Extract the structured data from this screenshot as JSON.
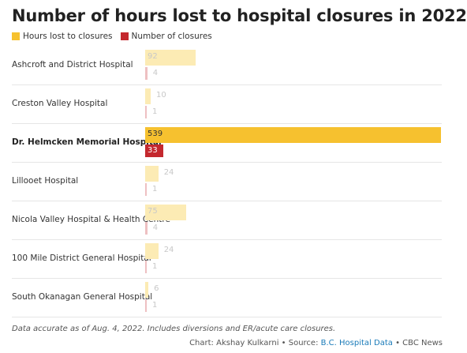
{
  "chart_data": {
    "type": "bar",
    "orientation": "horizontal",
    "title": "Number of hours lost to hospital closures in 2022",
    "categories": [
      "Ashcroft and District Hospital",
      "Creston Valley Hospital",
      "Dr. Helmcken Memorial Hospital",
      "Lillooet Hospital",
      "Nicola Valley Hospital & Health Centre",
      "100 Mile District General Hospital",
      "South Okanagan General Hospital"
    ],
    "highlight_index": 2,
    "series": [
      {
        "name": "Hours lost to closures",
        "values": [
          92,
          10,
          539,
          24,
          75,
          24,
          6
        ],
        "color": "#f6c12f",
        "muted_color": "#fcebb4"
      },
      {
        "name": "Number of closures",
        "values": [
          4,
          1,
          33,
          1,
          4,
          1,
          1
        ],
        "color": "#c4282e",
        "muted_color": "#eec0c2"
      }
    ],
    "xlim": [
      0,
      539
    ],
    "legend": "top-left",
    "grid": false
  },
  "footer": {
    "note": "Data accurate as of Aug. 4, 2022. Includes diversions and ER/acute care closures.",
    "credit_prefix": "Chart: Akshay Kulkarni • Source: ",
    "credit_link": "B.C. Hospital Data",
    "credit_suffix": " • CBC News"
  }
}
